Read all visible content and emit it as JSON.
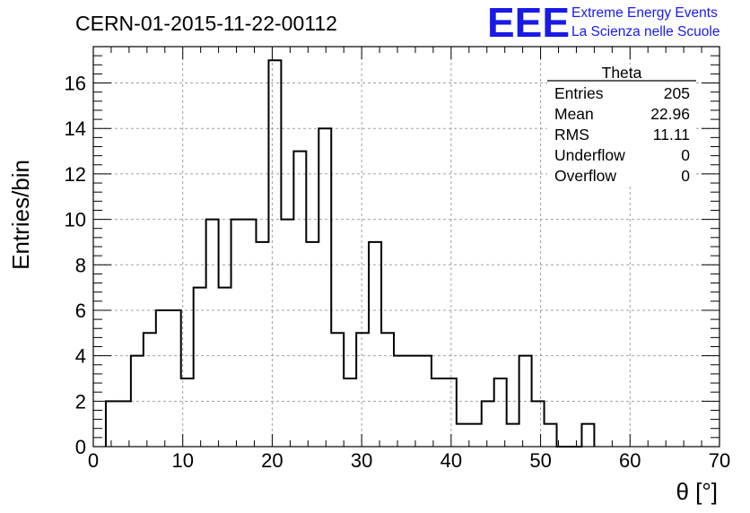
{
  "chart_data": {
    "type": "bar",
    "title": "CERN-01-2015-11-22-00112",
    "xlabel": "θ [°]",
    "ylabel": "Entries/bin",
    "xlim": [
      0,
      70
    ],
    "ylim": [
      0,
      17.6
    ],
    "grid": true,
    "x_ticks": [
      "0",
      "10",
      "20",
      "30",
      "40",
      "50",
      "60",
      "70"
    ],
    "y_ticks": [
      "0",
      "2",
      "4",
      "6",
      "8",
      "10",
      "12",
      "14",
      "16"
    ],
    "bin_width": 1.4,
    "bins_x_start": [
      1.4,
      2.8,
      4.2,
      5.6,
      7.0,
      8.4,
      9.8,
      11.2,
      12.6,
      14.0,
      15.4,
      16.8,
      18.2,
      19.6,
      21.0,
      22.4,
      23.8,
      25.2,
      26.6,
      28.0,
      29.4,
      30.8,
      32.2,
      33.6,
      35.0,
      36.4,
      37.8,
      39.2,
      40.6,
      42.0,
      43.4,
      44.8,
      46.2,
      47.6,
      49.0,
      50.4,
      51.8,
      53.2,
      54.6
    ],
    "values": [
      2,
      2,
      4,
      5,
      6,
      6,
      3,
      7,
      10,
      7,
      10,
      10,
      9,
      17,
      10,
      13,
      9,
      14,
      5,
      3,
      5,
      9,
      5,
      4,
      4,
      4,
      3,
      3,
      1,
      1,
      2,
      3,
      1,
      4,
      2,
      1,
      0,
      0,
      1
    ]
  },
  "stats": {
    "name": "Theta",
    "rows": [
      {
        "label": "Entries",
        "value": "205"
      },
      {
        "label": "Mean",
        "value": "22.96"
      },
      {
        "label": "RMS",
        "value": "11.11"
      },
      {
        "label": "Underflow",
        "value": "0"
      },
      {
        "label": "Overflow",
        "value": "0"
      }
    ]
  },
  "logo": {
    "mark": "EEE",
    "line1": "Extreme Energy Events",
    "line2": "La Scienza nelle Scuole"
  },
  "colors": {
    "histogram": "#000000",
    "grid": "#a0a0a0",
    "logo": "#1a1ae6"
  }
}
